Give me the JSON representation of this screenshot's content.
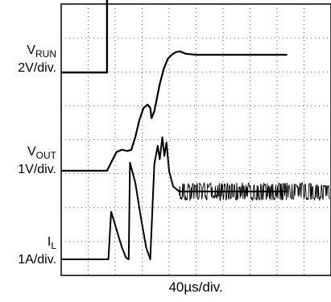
{
  "chart_data": {
    "type": "line",
    "title": "",
    "xlabel": "40µs/div.",
    "x_scale": {
      "unit": "µs",
      "per_div": 40,
      "divisions": 10
    },
    "grid": {
      "on": true,
      "style": "dotted",
      "x_divisions": 10,
      "y_divisions": 8
    },
    "legend": "none",
    "series": [
      {
        "label_main": "V",
        "label_sub": "RUN",
        "scale": "2V/div.",
        "unit": "V",
        "points": [
          [
            0,
            0
          ],
          [
            68,
            0
          ],
          [
            68,
            5.0
          ],
          [
            400,
            5.0
          ]
        ]
      },
      {
        "label_main": "V",
        "label_sub": "OUT",
        "scale": "1V/div.",
        "unit": "V",
        "points": [
          [
            0,
            0
          ],
          [
            68,
            0
          ],
          [
            75,
            0.28
          ],
          [
            82,
            0.55
          ],
          [
            90,
            0.62
          ],
          [
            98,
            0.58
          ],
          [
            104,
            0.62
          ],
          [
            110,
            1.0
          ],
          [
            116,
            1.5
          ],
          [
            122,
            1.85
          ],
          [
            128,
            1.95
          ],
          [
            132,
            1.85
          ],
          [
            134,
            1.55
          ],
          [
            138,
            1.75
          ],
          [
            146,
            2.55
          ],
          [
            152,
            3.0
          ],
          [
            158,
            3.3
          ],
          [
            164,
            3.42
          ],
          [
            170,
            3.5
          ],
          [
            176,
            3.52
          ],
          [
            185,
            3.45
          ],
          [
            200,
            3.42
          ],
          [
            260,
            3.42
          ],
          [
            335,
            3.42
          ]
        ]
      },
      {
        "label_main": "I",
        "label_sub": "L",
        "scale": "1A/div.",
        "unit": "A",
        "points": [
          [
            0,
            0
          ],
          [
            68,
            0
          ],
          [
            70,
            0
          ],
          [
            74,
            1.4
          ],
          [
            78,
            1.15
          ],
          [
            84,
            0.75
          ],
          [
            90,
            0.35
          ],
          [
            96,
            0.05
          ],
          [
            100,
            0
          ],
          [
            102,
            2.85
          ],
          [
            110,
            2.25
          ],
          [
            118,
            1.25
          ],
          [
            126,
            0.35
          ],
          [
            132,
            0
          ],
          [
            138,
            2.8
          ],
          [
            143,
            3.35
          ],
          [
            146,
            2.95
          ],
          [
            150,
            3.6
          ],
          [
            153,
            3.05
          ],
          [
            156,
            3.45
          ],
          [
            160,
            2.6
          ],
          [
            166,
            2.15
          ],
          [
            175,
            2.0
          ],
          [
            260,
            2.0
          ],
          [
            335,
            2.0
          ]
        ]
      }
    ]
  }
}
